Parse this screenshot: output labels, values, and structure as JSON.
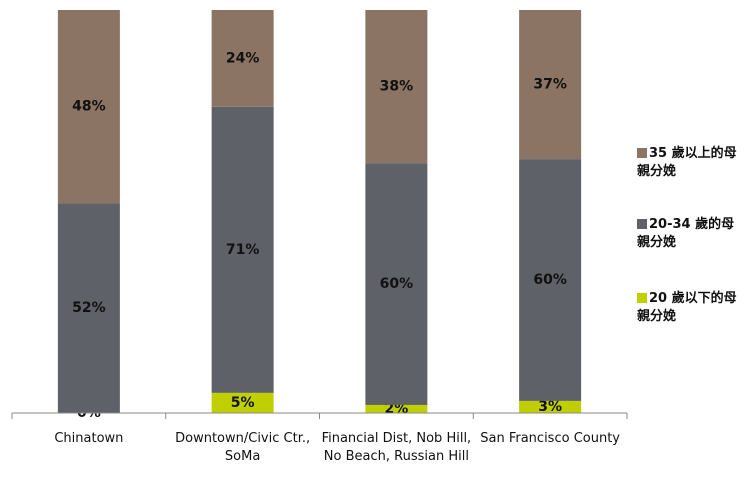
{
  "chart_data": {
    "type": "stacked_bar",
    "categories": [
      "Chinatown",
      "Downtown/Civic Ctr., SoMa",
      "Financial Dist, Nob Hill, No Beach, Russian Hill",
      "San Francisco County"
    ],
    "series": [
      {
        "name": "20 歲以下的母親分娩",
        "color": "#bfcf00",
        "values": [
          0,
          5,
          2,
          3
        ],
        "value_labels": [
          "0%",
          "5%",
          "2%",
          "3%"
        ]
      },
      {
        "name": "20-34 歲的母親分娩",
        "color": "#5f6169",
        "values": [
          52,
          71,
          60,
          60
        ],
        "value_labels": [
          "52%",
          "71%",
          "60%",
          "60%"
        ]
      },
      {
        "name": "35 歲以上的母親分娩",
        "color": "#8b7463",
        "values": [
          48,
          24,
          38,
          37
        ],
        "value_labels": [
          "48%",
          "24%",
          "38%",
          "37%"
        ]
      }
    ],
    "ylim": [
      0,
      100
    ],
    "legend": "right"
  }
}
